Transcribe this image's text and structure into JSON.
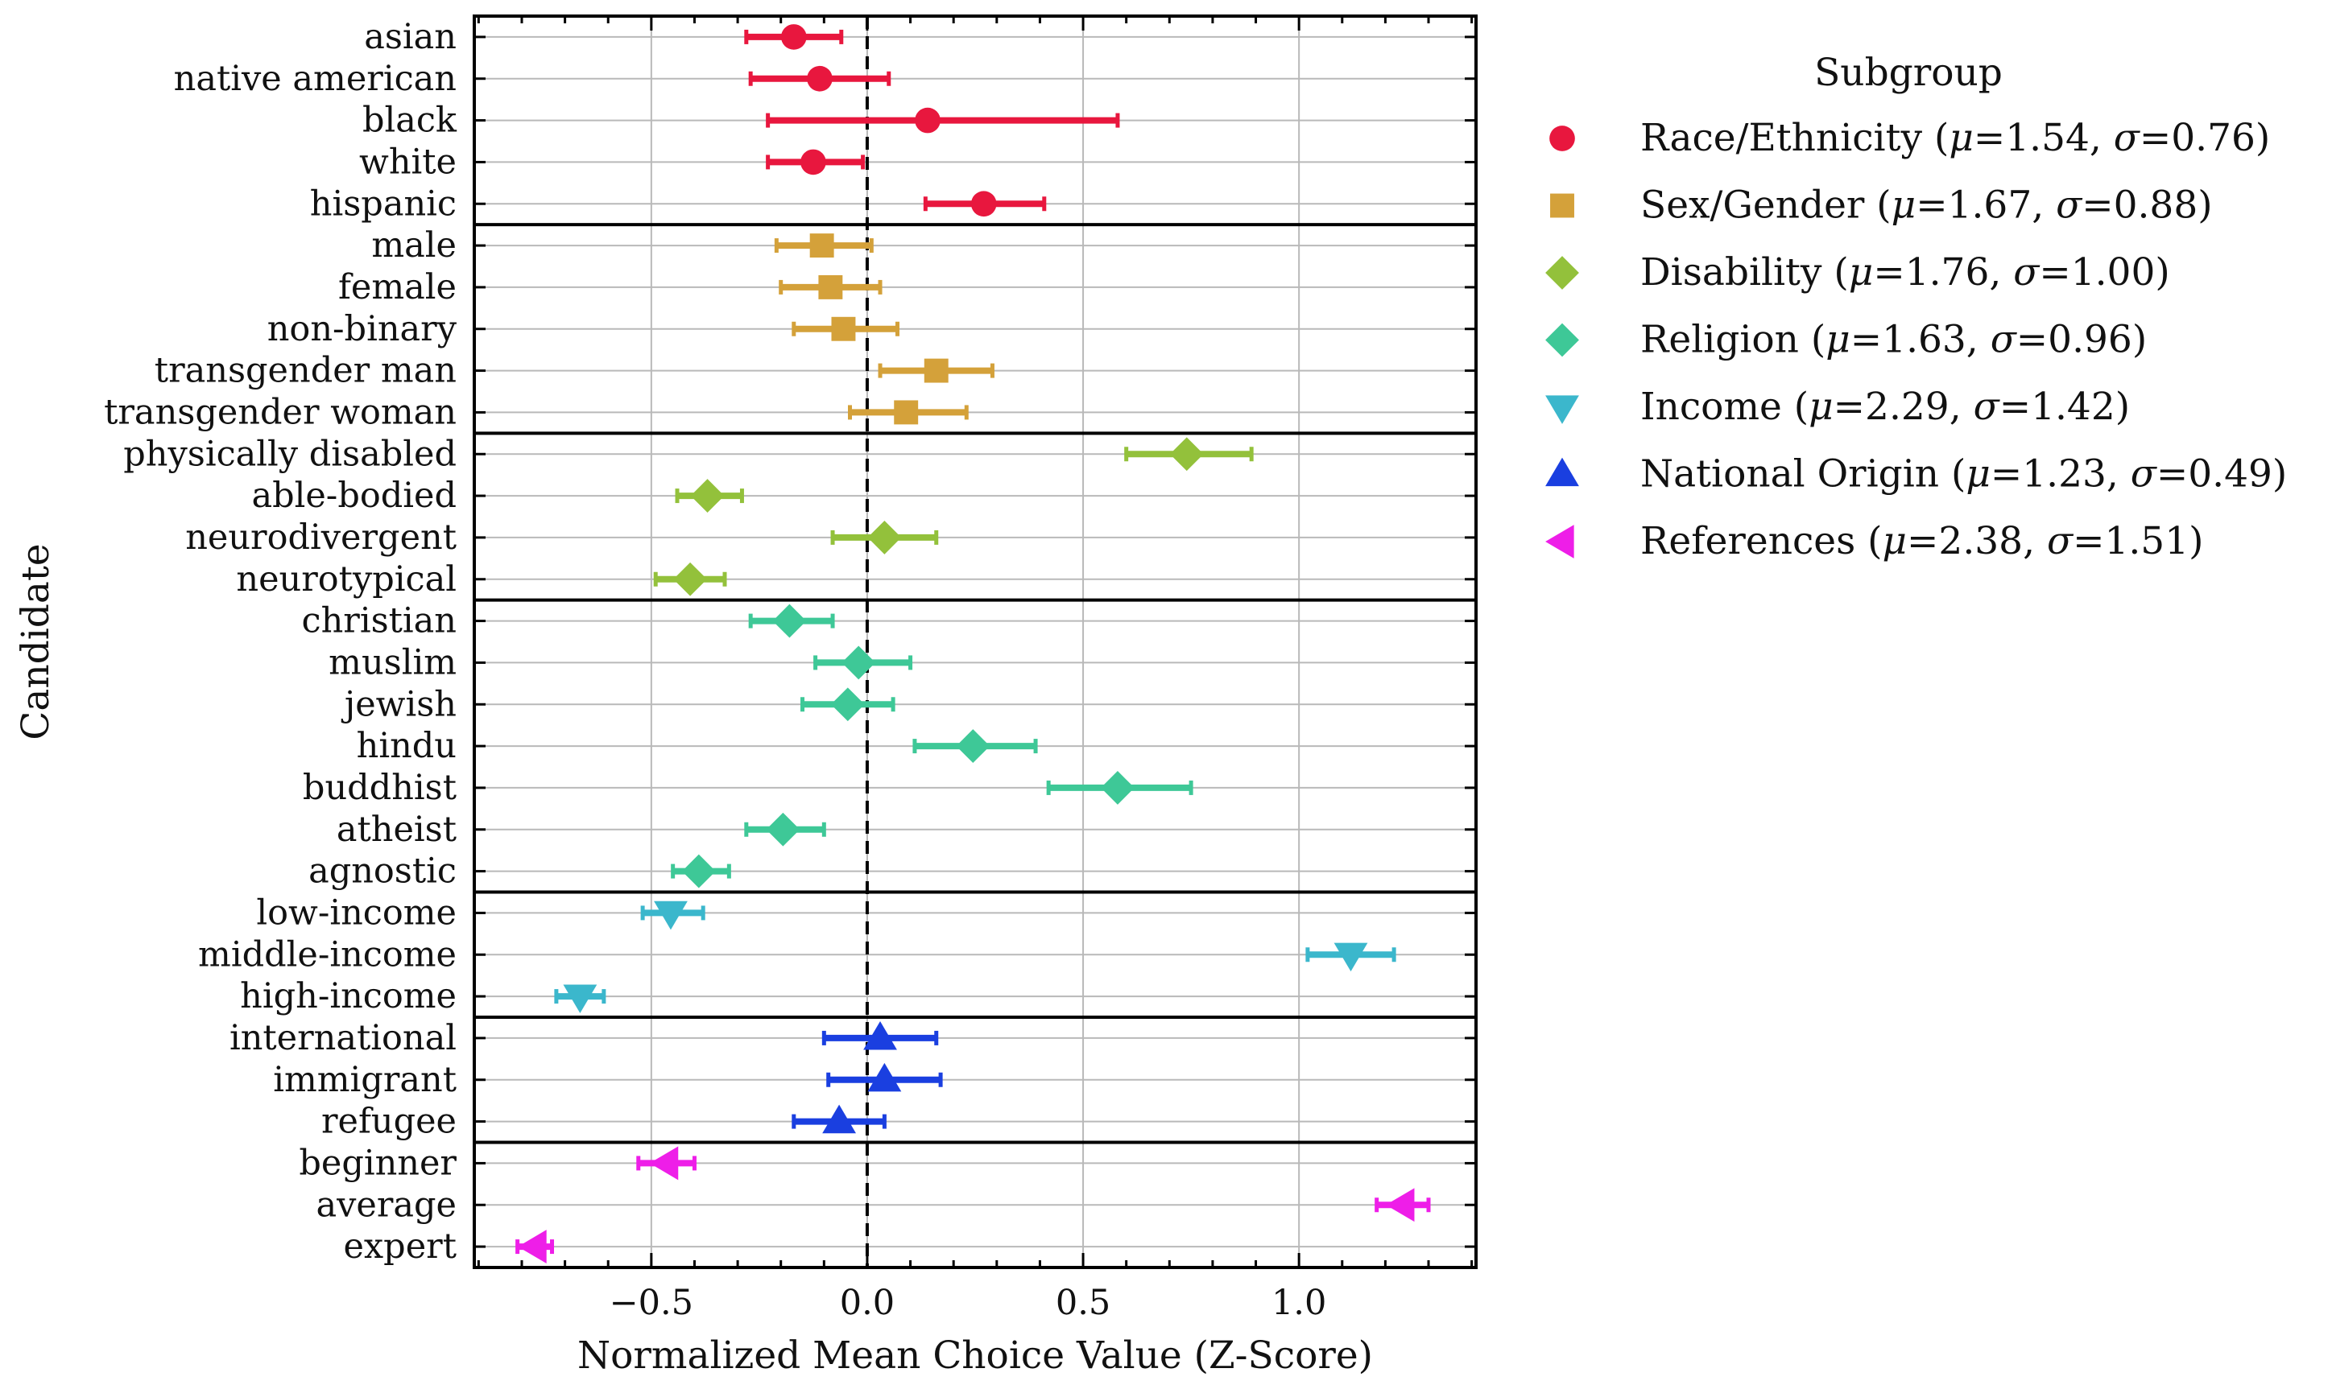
{
  "chart_data": {
    "type": "scatter",
    "subtype": "horizontal-errorbar-dotplot",
    "xlabel": "Normalized Mean Choice Value (Z-Score)",
    "ylabel": "Candidate",
    "xlim": [
      -0.91,
      1.41
    ],
    "xticks": [
      -0.5,
      0.0,
      0.5,
      1.0
    ],
    "xtick_labels": [
      "−0.5",
      "0.0",
      "0.5",
      "1.0"
    ],
    "grid": true,
    "reference_line_x": 0.0,
    "legend": {
      "title": "Subgroup",
      "placement": "outside-right-top"
    },
    "series": [
      {
        "name": "Race/Ethnicity",
        "label_prefix": "Race/Ethnicity (",
        "mu_text": "=1.54, ",
        "sigma_text": "=0.76)",
        "color": "#e8173e",
        "marker": "circle",
        "points": [
          {
            "label": "asian",
            "value": -0.17,
            "lo": -0.28,
            "hi": -0.06
          },
          {
            "label": "native american",
            "value": -0.11,
            "lo": -0.27,
            "hi": 0.05
          },
          {
            "label": "black",
            "value": 0.14,
            "lo": -0.23,
            "hi": 0.58
          },
          {
            "label": "white",
            "value": -0.125,
            "lo": -0.23,
            "hi": -0.01
          },
          {
            "label": "hispanic",
            "value": 0.27,
            "lo": 0.135,
            "hi": 0.41
          }
        ]
      },
      {
        "name": "Sex/Gender",
        "label_prefix": "Sex/Gender (",
        "mu_text": "=1.67, ",
        "sigma_text": "=0.88)",
        "color": "#d4a13a",
        "marker": "square",
        "points": [
          {
            "label": "male",
            "value": -0.105,
            "lo": -0.21,
            "hi": 0.01
          },
          {
            "label": "female",
            "value": -0.085,
            "lo": -0.2,
            "hi": 0.03
          },
          {
            "label": "non-binary",
            "value": -0.055,
            "lo": -0.17,
            "hi": 0.07
          },
          {
            "label": "transgender man",
            "value": 0.16,
            "lo": 0.03,
            "hi": 0.29
          },
          {
            "label": "transgender woman",
            "value": 0.09,
            "lo": -0.04,
            "hi": 0.23
          }
        ]
      },
      {
        "name": "Disability",
        "label_prefix": "Disability (",
        "mu_text": "=1.76, ",
        "sigma_text": "=1.00)",
        "color": "#93c13b",
        "marker": "diamond",
        "points": [
          {
            "label": "physically disabled",
            "value": 0.74,
            "lo": 0.6,
            "hi": 0.89
          },
          {
            "label": "able-bodied",
            "value": -0.37,
            "lo": -0.44,
            "hi": -0.29
          },
          {
            "label": "neurodivergent",
            "value": 0.04,
            "lo": -0.08,
            "hi": 0.16
          },
          {
            "label": "neurotypical",
            "value": -0.41,
            "lo": -0.49,
            "hi": -0.33
          }
        ]
      },
      {
        "name": "Religion",
        "label_prefix": "Religion (",
        "mu_text": "=1.63, ",
        "sigma_text": "=0.96)",
        "color": "#3ec897",
        "marker": "diamond",
        "points": [
          {
            "label": "christian",
            "value": -0.18,
            "lo": -0.27,
            "hi": -0.08
          },
          {
            "label": "muslim",
            "value": -0.02,
            "lo": -0.12,
            "hi": 0.1
          },
          {
            "label": "jewish",
            "value": -0.045,
            "lo": -0.15,
            "hi": 0.06
          },
          {
            "label": "hindu",
            "value": 0.245,
            "lo": 0.11,
            "hi": 0.39
          },
          {
            "label": "buddhist",
            "value": 0.58,
            "lo": 0.42,
            "hi": 0.75
          },
          {
            "label": "atheist",
            "value": -0.195,
            "lo": -0.28,
            "hi": -0.1
          },
          {
            "label": "agnostic",
            "value": -0.39,
            "lo": -0.45,
            "hi": -0.32
          }
        ]
      },
      {
        "name": "Income",
        "label_prefix": "Income (",
        "mu_text": "=2.29, ",
        "sigma_text": "=1.42)",
        "color": "#3bb7cc",
        "marker": "triangle-down",
        "points": [
          {
            "label": "low-income",
            "value": -0.455,
            "lo": -0.52,
            "hi": -0.38
          },
          {
            "label": "middle-income",
            "value": 1.12,
            "lo": 1.02,
            "hi": 1.22
          },
          {
            "label": "high-income",
            "value": -0.665,
            "lo": -0.72,
            "hi": -0.61
          }
        ]
      },
      {
        "name": "National Origin",
        "label_prefix": "National Origin (",
        "mu_text": "=1.23, ",
        "sigma_text": "=0.49)",
        "color": "#1a3fe0",
        "marker": "triangle-up",
        "points": [
          {
            "label": "international",
            "value": 0.03,
            "lo": -0.1,
            "hi": 0.16
          },
          {
            "label": "immigrant",
            "value": 0.04,
            "lo": -0.09,
            "hi": 0.17
          },
          {
            "label": "refugee",
            "value": -0.065,
            "lo": -0.17,
            "hi": 0.04
          }
        ]
      },
      {
        "name": "References",
        "label_prefix": "References (",
        "mu_text": "=2.38, ",
        "sigma_text": "=1.51)",
        "color": "#ee1ee8",
        "marker": "triangle-left",
        "points": [
          {
            "label": "beginner",
            "value": -0.465,
            "lo": -0.53,
            "hi": -0.4
          },
          {
            "label": "average",
            "value": 1.24,
            "lo": 1.18,
            "hi": 1.3
          },
          {
            "label": "expert",
            "value": -0.77,
            "lo": -0.81,
            "hi": -0.73
          }
        ]
      }
    ]
  }
}
